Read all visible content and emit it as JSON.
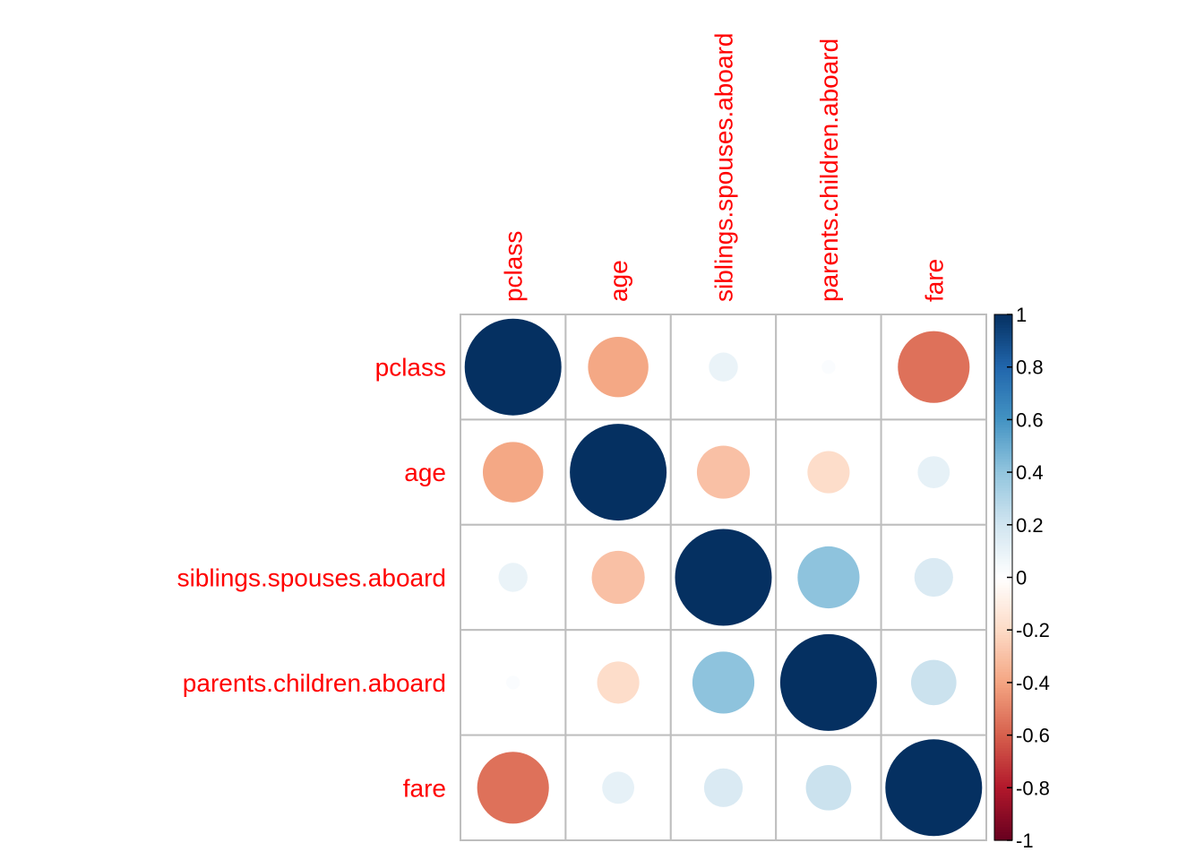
{
  "chart_data": {
    "type": "heatmap",
    "title": "",
    "variables": [
      "pclass",
      "age",
      "siblings.spouses.aboard",
      "parents.children.aboard",
      "fare"
    ],
    "matrix": [
      [
        1.0,
        -0.39,
        0.09,
        0.02,
        -0.55
      ],
      [
        -0.39,
        1.0,
        -0.3,
        -0.19,
        0.11
      ],
      [
        0.09,
        -0.3,
        1.0,
        0.41,
        0.16
      ],
      [
        0.02,
        -0.19,
        0.41,
        1.0,
        0.22
      ],
      [
        -0.55,
        0.11,
        0.16,
        0.22,
        1.0
      ]
    ],
    "legend": {
      "ticks": [
        "1",
        "0.8",
        "0.6",
        "0.4",
        "0.2",
        "0",
        "-0.2",
        "-0.4",
        "-0.6",
        "-0.8",
        "-1"
      ],
      "range": [
        -1,
        1
      ],
      "placement": "right"
    },
    "colors": {
      "label": "#ff0000",
      "grid": "#bebebe",
      "scale": [
        "#67001f",
        "#b2182b",
        "#d6604d",
        "#f4a582",
        "#fddbc7",
        "#ffffff",
        "#d1e5f0",
        "#92c5de",
        "#4393c3",
        "#2166ac",
        "#053061"
      ]
    }
  }
}
